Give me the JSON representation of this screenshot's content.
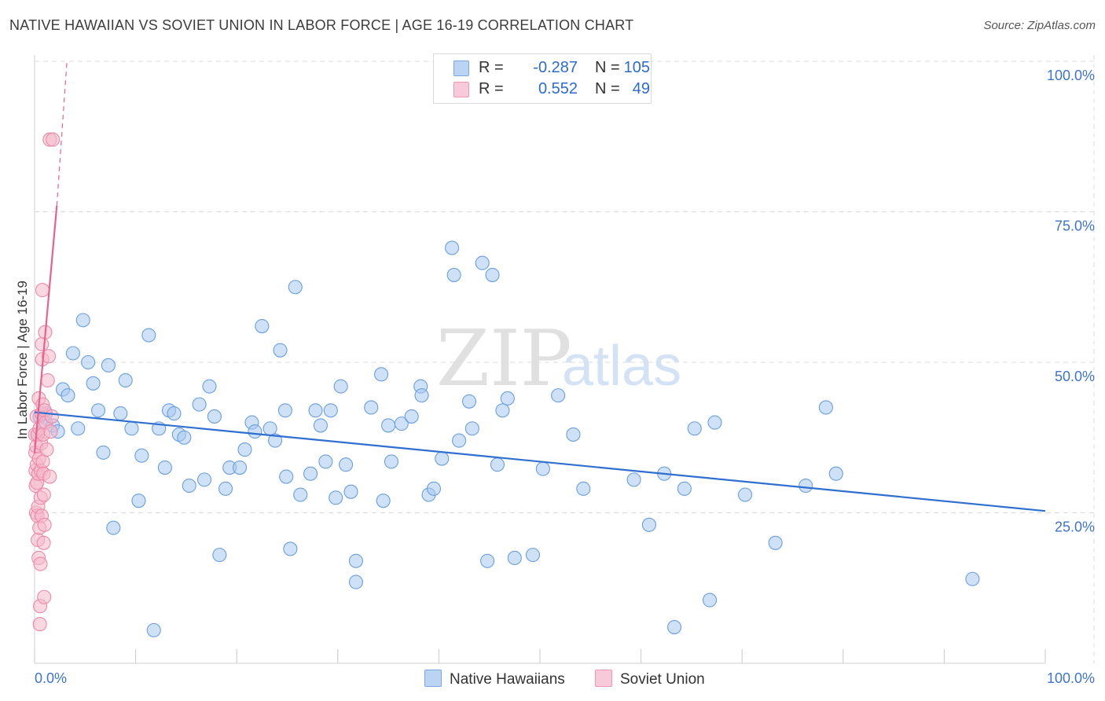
{
  "title": "NATIVE HAWAIIAN VS SOVIET UNION IN LABOR FORCE | AGE 16-19 CORRELATION CHART",
  "source": "Source: ZipAtlas.com",
  "colors": {
    "blue_fill": "#a8c8f0",
    "blue_stroke": "#6a9fe0",
    "blue_line": "#2f6fd0",
    "pink_fill": "#f6b8cb",
    "pink_stroke": "#ec8aaa",
    "pink_line": "#e8628e",
    "axis_text": "#3f74cc",
    "grid": "#dcdcdc"
  },
  "legend": {
    "r_label": "R =",
    "n_label": "N =",
    "rows": [
      {
        "r": "-0.287",
        "n": "105"
      },
      {
        "r": "0.552",
        "n": "49"
      }
    ]
  },
  "watermark": {
    "zip": "ZIP",
    "atlas": "atlas"
  },
  "chart_data": {
    "type": "scatter",
    "xlabel": "",
    "ylabel": "In Labor Force | Age 16-19",
    "xlim": [
      0,
      100
    ],
    "ylim": [
      0,
      100
    ],
    "x_tick_labels": [
      "0.0%",
      "100.0%"
    ],
    "y_tick_labels": [
      "25.0%",
      "50.0%",
      "75.0%",
      "100.0%"
    ],
    "y_ticks": [
      25,
      50,
      75,
      100
    ],
    "series": [
      {
        "name": "Native Hawaiians",
        "color": "#a8c8f0",
        "trend": {
          "x": [
            0,
            100
          ],
          "y": [
            41.7,
            25.3
          ],
          "style": "solid"
        },
        "points": [
          [
            0.3,
            38
          ],
          [
            0.5,
            41
          ],
          [
            0.9,
            40
          ],
          [
            1.1,
            41.5
          ],
          [
            1.8,
            39.5
          ],
          [
            2.3,
            38.5
          ],
          [
            2.8,
            45.5
          ],
          [
            3.3,
            44.5
          ],
          [
            3.8,
            51.5
          ],
          [
            4.3,
            39
          ],
          [
            4.8,
            57
          ],
          [
            5.3,
            50
          ],
          [
            5.8,
            46.5
          ],
          [
            6.3,
            42
          ],
          [
            6.8,
            35
          ],
          [
            7.3,
            49.5
          ],
          [
            7.8,
            22.5
          ],
          [
            8.5,
            41.5
          ],
          [
            9,
            47
          ],
          [
            9.6,
            39
          ],
          [
            10.3,
            27
          ],
          [
            10.6,
            34.5
          ],
          [
            11.3,
            54.5
          ],
          [
            11.8,
            5.5
          ],
          [
            12.3,
            39
          ],
          [
            12.9,
            32.5
          ],
          [
            13.3,
            42
          ],
          [
            13.8,
            41.5
          ],
          [
            14.3,
            38
          ],
          [
            14.8,
            37.5
          ],
          [
            15.3,
            29.5
          ],
          [
            16.3,
            43
          ],
          [
            16.8,
            30.5
          ],
          [
            17.3,
            46
          ],
          [
            17.8,
            41
          ],
          [
            18.3,
            18
          ],
          [
            18.9,
            29
          ],
          [
            19.3,
            32.5
          ],
          [
            20.3,
            32.5
          ],
          [
            20.8,
            35.5
          ],
          [
            21.5,
            40
          ],
          [
            21.8,
            38.5
          ],
          [
            22.5,
            56
          ],
          [
            23.3,
            39
          ],
          [
            23.8,
            37
          ],
          [
            24.3,
            52
          ],
          [
            24.8,
            42
          ],
          [
            24.9,
            31
          ],
          [
            25.3,
            19
          ],
          [
            25.8,
            62.5
          ],
          [
            26.3,
            28
          ],
          [
            27.3,
            31.5
          ],
          [
            27.8,
            42
          ],
          [
            28.3,
            39.5
          ],
          [
            28.8,
            33.5
          ],
          [
            29.3,
            42
          ],
          [
            29.8,
            27.5
          ],
          [
            30.3,
            46
          ],
          [
            30.8,
            33
          ],
          [
            31.3,
            28.5
          ],
          [
            31.8,
            17
          ],
          [
            31.8,
            13.5
          ],
          [
            33.3,
            42.5
          ],
          [
            34.3,
            48
          ],
          [
            34.5,
            27
          ],
          [
            35,
            39.5
          ],
          [
            35.3,
            33.5
          ],
          [
            36.3,
            39.8
          ],
          [
            37.3,
            41
          ],
          [
            38.2,
            46
          ],
          [
            38.3,
            44.5
          ],
          [
            39,
            28
          ],
          [
            39.5,
            29
          ],
          [
            40.3,
            34
          ],
          [
            41.3,
            69
          ],
          [
            41.5,
            64.5
          ],
          [
            42,
            37
          ],
          [
            43,
            43.5
          ],
          [
            43.3,
            39
          ],
          [
            44.3,
            66.5
          ],
          [
            44.8,
            17
          ],
          [
            45.3,
            64.5
          ],
          [
            45.8,
            33
          ],
          [
            46.3,
            42
          ],
          [
            46.8,
            44
          ],
          [
            47.5,
            17.5
          ],
          [
            49.3,
            18
          ],
          [
            50.3,
            32.3
          ],
          [
            51.8,
            44.5
          ],
          [
            53.3,
            38
          ],
          [
            54.3,
            29
          ],
          [
            59.3,
            30.5
          ],
          [
            60.8,
            23
          ],
          [
            62.3,
            31.5
          ],
          [
            63.3,
            6
          ],
          [
            64.3,
            29
          ],
          [
            65.3,
            39
          ],
          [
            66.8,
            10.5
          ],
          [
            67.3,
            40
          ],
          [
            70.3,
            28
          ],
          [
            73.3,
            20
          ],
          [
            76.3,
            29.5
          ],
          [
            78.3,
            42.5
          ],
          [
            79.3,
            31.5
          ],
          [
            92.8,
            14
          ]
        ]
      },
      {
        "name": "Soviet Union",
        "color": "#f6b8cb",
        "trend": {
          "x": [
            0,
            2.2
          ],
          "y": [
            34.9,
            76.0
          ],
          "style": "solid",
          "dashed_extension": {
            "x": [
              2.2,
              3.2
            ],
            "y": [
              76.0,
              100
            ]
          }
        },
        "points": [
          [
            0.05,
            38
          ],
          [
            0.08,
            35
          ],
          [
            0.1,
            32
          ],
          [
            0.12,
            29.5
          ],
          [
            0.15,
            25
          ],
          [
            0.18,
            36
          ],
          [
            0.2,
            41
          ],
          [
            0.22,
            33
          ],
          [
            0.25,
            30
          ],
          [
            0.28,
            24.5
          ],
          [
            0.3,
            38
          ],
          [
            0.32,
            20.5
          ],
          [
            0.35,
            26
          ],
          [
            0.38,
            31.5
          ],
          [
            0.4,
            17.5
          ],
          [
            0.42,
            44
          ],
          [
            0.45,
            34
          ],
          [
            0.48,
            22.5
          ],
          [
            0.5,
            39
          ],
          [
            0.52,
            6.5
          ],
          [
            0.55,
            9.5
          ],
          [
            0.58,
            16.5
          ],
          [
            0.6,
            27.5
          ],
          [
            0.62,
            32
          ],
          [
            0.65,
            36.5
          ],
          [
            0.68,
            41.5
          ],
          [
            0.7,
            24.5
          ],
          [
            0.72,
            53
          ],
          [
            0.75,
            50.5
          ],
          [
            0.78,
            62
          ],
          [
            0.8,
            43
          ],
          [
            0.82,
            33.5
          ],
          [
            0.85,
            38
          ],
          [
            0.88,
            31.5
          ],
          [
            0.9,
            20
          ],
          [
            0.92,
            28
          ],
          [
            0.95,
            11
          ],
          [
            0.98,
            23
          ],
          [
            1.0,
            42
          ],
          [
            1.05,
            55
          ],
          [
            1.1,
            40
          ],
          [
            1.2,
            35.5
          ],
          [
            1.3,
            47
          ],
          [
            1.4,
            51
          ],
          [
            1.5,
            31
          ],
          [
            1.6,
            38.5
          ],
          [
            1.7,
            41
          ],
          [
            1.5,
            87
          ],
          [
            1.8,
            87
          ]
        ]
      }
    ]
  }
}
